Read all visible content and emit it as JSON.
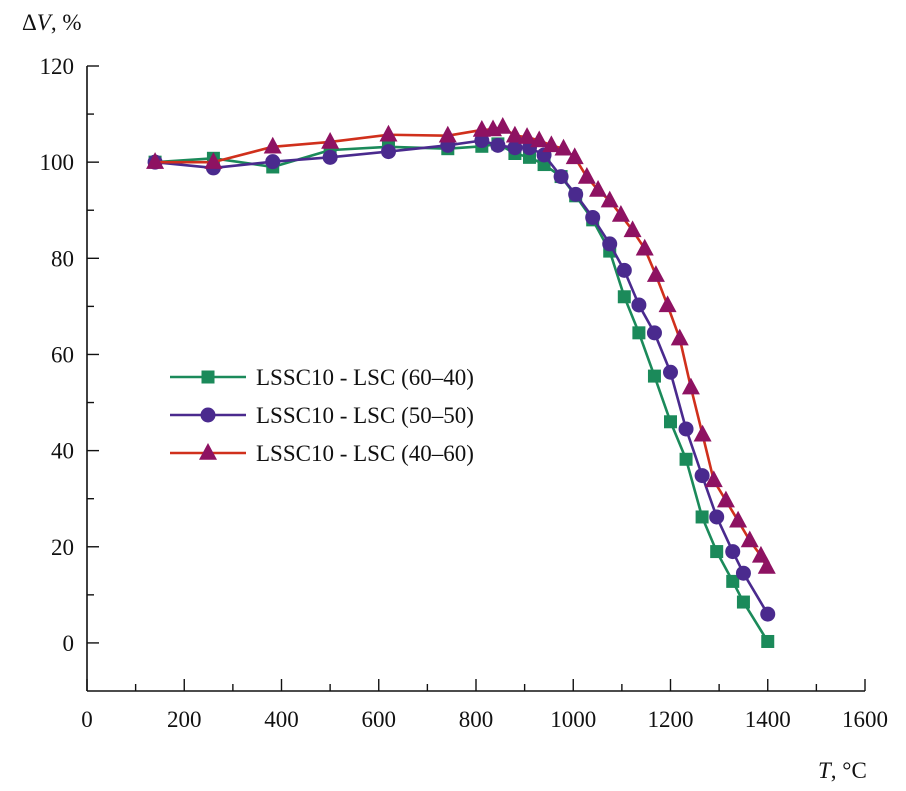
{
  "chart_data": {
    "type": "line",
    "title": "",
    "xlabel": "T, °C",
    "ylabel": "ΔV, %",
    "xlabel_italic_part": "T",
    "xlabel_unit": ", °C",
    "ylabel_italic_part": "V",
    "ylabel_prefix": "Δ",
    "ylabel_unit": ", %",
    "xlim": [
      0,
      1600
    ],
    "ylim": [
      -10,
      120
    ],
    "xticks": [
      0,
      200,
      400,
      600,
      800,
      1000,
      1200,
      1400,
      1600
    ],
    "xtick_labels": [
      "0",
      "200",
      "400",
      "600",
      "800",
      "1000",
      "1200",
      "1400",
      "1600"
    ],
    "x_minor_step": 100,
    "yticks": [
      0,
      20,
      40,
      60,
      80,
      100,
      120
    ],
    "ytick_labels": [
      "0",
      "20",
      "40",
      "60",
      "80",
      "100",
      "120"
    ],
    "y_minor_step": 10,
    "grid": false,
    "legend_position": "center-left",
    "series": [
      {
        "name": "LSSC10 - LSC (60–40)",
        "marker": "square",
        "line_color": "#1b8a5a",
        "marker_color": "#1b8a5a",
        "x": [
          140,
          260,
          382,
          500,
          620,
          742,
          812,
          845,
          880,
          910,
          940,
          975,
          1005,
          1040,
          1075,
          1105,
          1135,
          1167,
          1200,
          1232,
          1265,
          1295,
          1328,
          1350,
          1400
        ],
        "y": [
          100,
          100.8,
          99,
          102.5,
          103.2,
          102.8,
          103.3,
          103.8,
          101.8,
          101,
          99.5,
          97,
          93,
          88,
          81.5,
          72,
          64.5,
          55.5,
          46,
          38.2,
          26.2,
          19,
          12.8,
          8.5,
          0.3
        ]
      },
      {
        "name": "LSSC10 - LSC (50–50)",
        "marker": "circle",
        "line_color": "#4a2a8e",
        "marker_color": "#4a2a8e",
        "x": [
          140,
          260,
          382,
          500,
          620,
          742,
          812,
          845,
          880,
          910,
          940,
          975,
          1005,
          1040,
          1075,
          1105,
          1135,
          1167,
          1200,
          1232,
          1265,
          1295,
          1328,
          1350,
          1400
        ],
        "y": [
          100,
          98.8,
          100.1,
          101,
          102.2,
          103.5,
          104.5,
          103.5,
          103,
          103,
          101.5,
          97,
          93.3,
          88.5,
          83,
          77.5,
          70.3,
          64.5,
          56.3,
          44.5,
          34.8,
          26.2,
          19,
          14.5,
          6
        ]
      },
      {
        "name": "LSSC10 - LSC (40–60)",
        "marker": "triangle",
        "line_color": "#d0301c",
        "marker_color": "#8e1262",
        "x": [
          140,
          260,
          382,
          500,
          620,
          742,
          812,
          835,
          855,
          880,
          905,
          930,
          955,
          980,
          1003,
          1028,
          1051,
          1075,
          1098,
          1122,
          1147,
          1170,
          1194,
          1219,
          1242,
          1266,
          1289,
          1314,
          1339,
          1363,
          1386,
          1398
        ],
        "y": [
          100,
          100,
          103.2,
          104.2,
          105.7,
          105.5,
          106.7,
          106.8,
          107.3,
          105.5,
          105.2,
          104.5,
          103.5,
          102.8,
          101,
          96.9,
          94.2,
          92,
          89,
          85.8,
          82,
          76.5,
          70.2,
          63.3,
          53.1,
          43.3,
          33.8,
          29.6,
          25.4,
          21.3,
          18.1,
          15.8
        ]
      }
    ]
  }
}
